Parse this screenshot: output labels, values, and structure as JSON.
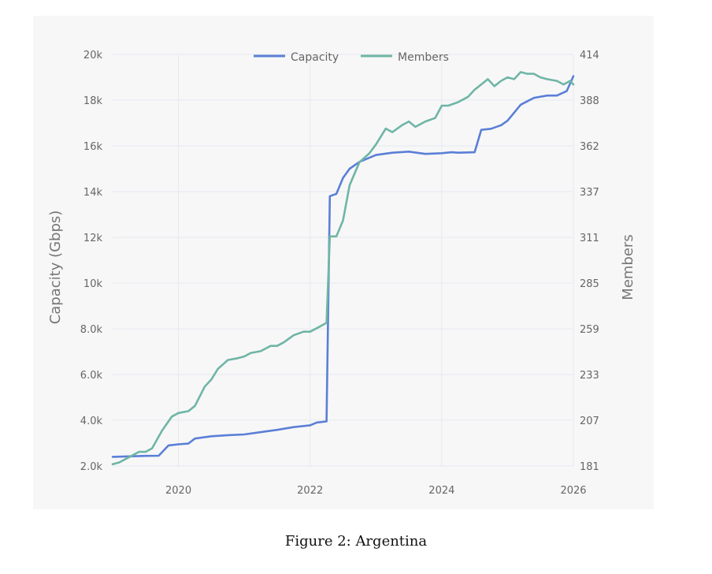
{
  "chart_data": {
    "type": "line",
    "y_left_label": "Capacity (Gbps)",
    "y_right_label": "Members",
    "legend_position": "top-center",
    "grid": true,
    "xlim": [
      2019.0,
      2026.0
    ],
    "x_ticks": [
      "2020",
      "2022",
      "2024",
      "2026"
    ],
    "x_tick_values": [
      2020,
      2022,
      2024,
      2026
    ],
    "y_left_ticks": [
      "2.0k",
      "4.0k",
      "6.0k",
      "8.0k",
      "10k",
      "12k",
      "14k",
      "16k",
      "18k",
      "20k"
    ],
    "y_left_tick_values": [
      2000,
      4000,
      6000,
      8000,
      10000,
      12000,
      14000,
      16000,
      18000,
      20000
    ],
    "y_right_ticks": [
      "181",
      "207",
      "233",
      "259",
      "285",
      "311",
      "337",
      "362",
      "388",
      "414"
    ],
    "ylim_left": [
      2000,
      20000
    ],
    "ylim_right": [
      181,
      414
    ],
    "series": [
      {
        "name": "Capacity",
        "axis": "left",
        "color": "#5b7fd6",
        "x": [
          2019.0,
          2019.25,
          2019.5,
          2019.7,
          2019.85,
          2020.0,
          2020.15,
          2020.25,
          2020.5,
          2020.75,
          2021.0,
          2021.25,
          2021.5,
          2021.75,
          2022.0,
          2022.1,
          2022.25,
          2022.3,
          2022.4,
          2022.5,
          2022.6,
          2022.75,
          2023.0,
          2023.25,
          2023.5,
          2023.75,
          2024.0,
          2024.15,
          2024.25,
          2024.5,
          2024.6,
          2024.75,
          2024.9,
          2025.0,
          2025.2,
          2025.4,
          2025.6,
          2025.75,
          2025.9,
          2026.0
        ],
        "values": [
          2400,
          2420,
          2440,
          2450,
          2900,
          2950,
          2980,
          3200,
          3300,
          3350,
          3380,
          3480,
          3580,
          3700,
          3780,
          3900,
          3950,
          13800,
          13900,
          14600,
          15000,
          15300,
          15600,
          15700,
          15750,
          15650,
          15680,
          15720,
          15700,
          15720,
          16700,
          16750,
          16900,
          17100,
          17800,
          18100,
          18200,
          18200,
          18400,
          19050
        ]
      },
      {
        "name": "Members",
        "axis": "right",
        "color": "#6fb5a5",
        "x": [
          2019.0,
          2019.1,
          2019.25,
          2019.4,
          2019.5,
          2019.6,
          2019.75,
          2019.9,
          2020.0,
          2020.15,
          2020.25,
          2020.4,
          2020.5,
          2020.6,
          2020.75,
          2020.9,
          2021.0,
          2021.1,
          2021.25,
          2021.4,
          2021.5,
          2021.6,
          2021.75,
          2021.9,
          2022.0,
          2022.1,
          2022.25,
          2022.3,
          2022.4,
          2022.5,
          2022.6,
          2022.75,
          2022.9,
          2023.0,
          2023.15,
          2023.25,
          2023.4,
          2023.5,
          2023.6,
          2023.75,
          2023.9,
          2024.0,
          2024.1,
          2024.25,
          2024.4,
          2024.5,
          2024.6,
          2024.7,
          2024.8,
          2024.9,
          2025.0,
          2025.1,
          2025.2,
          2025.3,
          2025.4,
          2025.5,
          2025.6,
          2025.75,
          2025.85,
          2025.95,
          2026.0
        ],
        "values": [
          182,
          183,
          186,
          189,
          189,
          191,
          201,
          209,
          211,
          212,
          215,
          226,
          230,
          236,
          241,
          242,
          243,
          245,
          246,
          249,
          249,
          251,
          255,
          257,
          257,
          259,
          262,
          311,
          311,
          320,
          340,
          353,
          358,
          363,
          372,
          370,
          374,
          376,
          373,
          376,
          378,
          385,
          385,
          387,
          390,
          394,
          397,
          400,
          396,
          399,
          401,
          400,
          404,
          403,
          403,
          401,
          400,
          399,
          397,
          399,
          397
        ]
      }
    ]
  },
  "caption": "Figure 2:  Argentina"
}
